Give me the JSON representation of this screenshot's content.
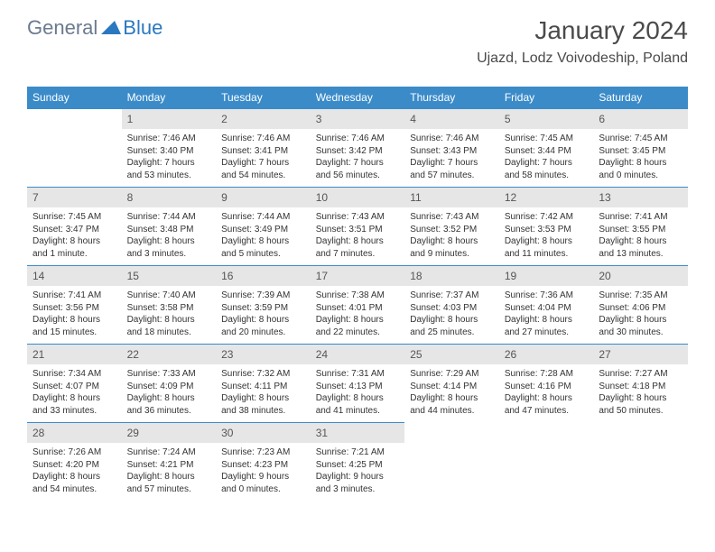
{
  "brand": {
    "general": "General",
    "blue": "Blue"
  },
  "title": "January 2024",
  "location": "Ujazd, Lodz Voivodeship, Poland",
  "colors": {
    "header_bg": "#3b8bc9",
    "daynum_bg": "#e6e6e6",
    "border": "#3b8bc9",
    "text": "#333333",
    "logo_gray": "#6b7a8f",
    "logo_blue": "#2a78c0"
  },
  "day_headers": [
    "Sunday",
    "Monday",
    "Tuesday",
    "Wednesday",
    "Thursday",
    "Friday",
    "Saturday"
  ],
  "weeks": [
    [
      {
        "n": "",
        "sunrise": "",
        "sunset": "",
        "daylight1": "",
        "daylight2": ""
      },
      {
        "n": "1",
        "sunrise": "Sunrise: 7:46 AM",
        "sunset": "Sunset: 3:40 PM",
        "daylight1": "Daylight: 7 hours",
        "daylight2": "and 53 minutes."
      },
      {
        "n": "2",
        "sunrise": "Sunrise: 7:46 AM",
        "sunset": "Sunset: 3:41 PM",
        "daylight1": "Daylight: 7 hours",
        "daylight2": "and 54 minutes."
      },
      {
        "n": "3",
        "sunrise": "Sunrise: 7:46 AM",
        "sunset": "Sunset: 3:42 PM",
        "daylight1": "Daylight: 7 hours",
        "daylight2": "and 56 minutes."
      },
      {
        "n": "4",
        "sunrise": "Sunrise: 7:46 AM",
        "sunset": "Sunset: 3:43 PM",
        "daylight1": "Daylight: 7 hours",
        "daylight2": "and 57 minutes."
      },
      {
        "n": "5",
        "sunrise": "Sunrise: 7:45 AM",
        "sunset": "Sunset: 3:44 PM",
        "daylight1": "Daylight: 7 hours",
        "daylight2": "and 58 minutes."
      },
      {
        "n": "6",
        "sunrise": "Sunrise: 7:45 AM",
        "sunset": "Sunset: 3:45 PM",
        "daylight1": "Daylight: 8 hours",
        "daylight2": "and 0 minutes."
      }
    ],
    [
      {
        "n": "7",
        "sunrise": "Sunrise: 7:45 AM",
        "sunset": "Sunset: 3:47 PM",
        "daylight1": "Daylight: 8 hours",
        "daylight2": "and 1 minute."
      },
      {
        "n": "8",
        "sunrise": "Sunrise: 7:44 AM",
        "sunset": "Sunset: 3:48 PM",
        "daylight1": "Daylight: 8 hours",
        "daylight2": "and 3 minutes."
      },
      {
        "n": "9",
        "sunrise": "Sunrise: 7:44 AM",
        "sunset": "Sunset: 3:49 PM",
        "daylight1": "Daylight: 8 hours",
        "daylight2": "and 5 minutes."
      },
      {
        "n": "10",
        "sunrise": "Sunrise: 7:43 AM",
        "sunset": "Sunset: 3:51 PM",
        "daylight1": "Daylight: 8 hours",
        "daylight2": "and 7 minutes."
      },
      {
        "n": "11",
        "sunrise": "Sunrise: 7:43 AM",
        "sunset": "Sunset: 3:52 PM",
        "daylight1": "Daylight: 8 hours",
        "daylight2": "and 9 minutes."
      },
      {
        "n": "12",
        "sunrise": "Sunrise: 7:42 AM",
        "sunset": "Sunset: 3:53 PM",
        "daylight1": "Daylight: 8 hours",
        "daylight2": "and 11 minutes."
      },
      {
        "n": "13",
        "sunrise": "Sunrise: 7:41 AM",
        "sunset": "Sunset: 3:55 PM",
        "daylight1": "Daylight: 8 hours",
        "daylight2": "and 13 minutes."
      }
    ],
    [
      {
        "n": "14",
        "sunrise": "Sunrise: 7:41 AM",
        "sunset": "Sunset: 3:56 PM",
        "daylight1": "Daylight: 8 hours",
        "daylight2": "and 15 minutes."
      },
      {
        "n": "15",
        "sunrise": "Sunrise: 7:40 AM",
        "sunset": "Sunset: 3:58 PM",
        "daylight1": "Daylight: 8 hours",
        "daylight2": "and 18 minutes."
      },
      {
        "n": "16",
        "sunrise": "Sunrise: 7:39 AM",
        "sunset": "Sunset: 3:59 PM",
        "daylight1": "Daylight: 8 hours",
        "daylight2": "and 20 minutes."
      },
      {
        "n": "17",
        "sunrise": "Sunrise: 7:38 AM",
        "sunset": "Sunset: 4:01 PM",
        "daylight1": "Daylight: 8 hours",
        "daylight2": "and 22 minutes."
      },
      {
        "n": "18",
        "sunrise": "Sunrise: 7:37 AM",
        "sunset": "Sunset: 4:03 PM",
        "daylight1": "Daylight: 8 hours",
        "daylight2": "and 25 minutes."
      },
      {
        "n": "19",
        "sunrise": "Sunrise: 7:36 AM",
        "sunset": "Sunset: 4:04 PM",
        "daylight1": "Daylight: 8 hours",
        "daylight2": "and 27 minutes."
      },
      {
        "n": "20",
        "sunrise": "Sunrise: 7:35 AM",
        "sunset": "Sunset: 4:06 PM",
        "daylight1": "Daylight: 8 hours",
        "daylight2": "and 30 minutes."
      }
    ],
    [
      {
        "n": "21",
        "sunrise": "Sunrise: 7:34 AM",
        "sunset": "Sunset: 4:07 PM",
        "daylight1": "Daylight: 8 hours",
        "daylight2": "and 33 minutes."
      },
      {
        "n": "22",
        "sunrise": "Sunrise: 7:33 AM",
        "sunset": "Sunset: 4:09 PM",
        "daylight1": "Daylight: 8 hours",
        "daylight2": "and 36 minutes."
      },
      {
        "n": "23",
        "sunrise": "Sunrise: 7:32 AM",
        "sunset": "Sunset: 4:11 PM",
        "daylight1": "Daylight: 8 hours",
        "daylight2": "and 38 minutes."
      },
      {
        "n": "24",
        "sunrise": "Sunrise: 7:31 AM",
        "sunset": "Sunset: 4:13 PM",
        "daylight1": "Daylight: 8 hours",
        "daylight2": "and 41 minutes."
      },
      {
        "n": "25",
        "sunrise": "Sunrise: 7:29 AM",
        "sunset": "Sunset: 4:14 PM",
        "daylight1": "Daylight: 8 hours",
        "daylight2": "and 44 minutes."
      },
      {
        "n": "26",
        "sunrise": "Sunrise: 7:28 AM",
        "sunset": "Sunset: 4:16 PM",
        "daylight1": "Daylight: 8 hours",
        "daylight2": "and 47 minutes."
      },
      {
        "n": "27",
        "sunrise": "Sunrise: 7:27 AM",
        "sunset": "Sunset: 4:18 PM",
        "daylight1": "Daylight: 8 hours",
        "daylight2": "and 50 minutes."
      }
    ],
    [
      {
        "n": "28",
        "sunrise": "Sunrise: 7:26 AM",
        "sunset": "Sunset: 4:20 PM",
        "daylight1": "Daylight: 8 hours",
        "daylight2": "and 54 minutes."
      },
      {
        "n": "29",
        "sunrise": "Sunrise: 7:24 AM",
        "sunset": "Sunset: 4:21 PM",
        "daylight1": "Daylight: 8 hours",
        "daylight2": "and 57 minutes."
      },
      {
        "n": "30",
        "sunrise": "Sunrise: 7:23 AM",
        "sunset": "Sunset: 4:23 PM",
        "daylight1": "Daylight: 9 hours",
        "daylight2": "and 0 minutes."
      },
      {
        "n": "31",
        "sunrise": "Sunrise: 7:21 AM",
        "sunset": "Sunset: 4:25 PM",
        "daylight1": "Daylight: 9 hours",
        "daylight2": "and 3 minutes."
      },
      {
        "n": "",
        "sunrise": "",
        "sunset": "",
        "daylight1": "",
        "daylight2": ""
      },
      {
        "n": "",
        "sunrise": "",
        "sunset": "",
        "daylight1": "",
        "daylight2": ""
      },
      {
        "n": "",
        "sunrise": "",
        "sunset": "",
        "daylight1": "",
        "daylight2": ""
      }
    ]
  ]
}
